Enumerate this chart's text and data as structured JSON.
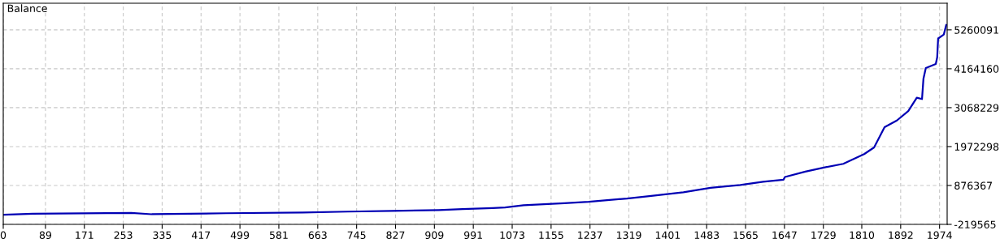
{
  "chart_data": {
    "type": "line",
    "title": "Balance",
    "grid": true,
    "line_style": "solid",
    "marker": "none",
    "xlim": [
      0,
      1990
    ],
    "xticks": [
      0,
      89,
      171,
      253,
      335,
      417,
      499,
      581,
      663,
      745,
      827,
      909,
      991,
      1073,
      1155,
      1237,
      1319,
      1401,
      1483,
      1565,
      1647,
      1729,
      1810,
      1892,
      1974
    ],
    "ylim": [
      -219565,
      6010000
    ],
    "yticks": [
      -219565,
      876367,
      1972298,
      3068229,
      4164160,
      5260091
    ],
    "series": [
      {
        "color": "#0000b4",
        "x": [
          0,
          62,
          270,
          313,
          470,
          631,
          726,
          819,
          918,
          968,
          1032,
          1058,
          1097,
          1183,
          1234,
          1315,
          1366,
          1434,
          1491,
          1554,
          1602,
          1645,
          1648,
          1691,
          1730,
          1771,
          1815,
          1836,
          1858,
          1884,
          1908,
          1926,
          1937,
          1940,
          1945,
          1966,
          1969,
          1971,
          1983,
          1988
        ],
        "values": [
          53000,
          80000,
          103000,
          66000,
          94000,
          112000,
          140000,
          158000,
          185000,
          212000,
          240000,
          258000,
          319000,
          378000,
          417000,
          508000,
          583000,
          683000,
          810000,
          888000,
          979000,
          1039000,
          1115000,
          1266000,
          1380000,
          1486000,
          1759000,
          1948000,
          2517000,
          2707000,
          2972000,
          3350000,
          3311000,
          3881000,
          4184000,
          4298000,
          4487000,
          5017000,
          5130000,
          5396000
        ]
      }
    ]
  }
}
